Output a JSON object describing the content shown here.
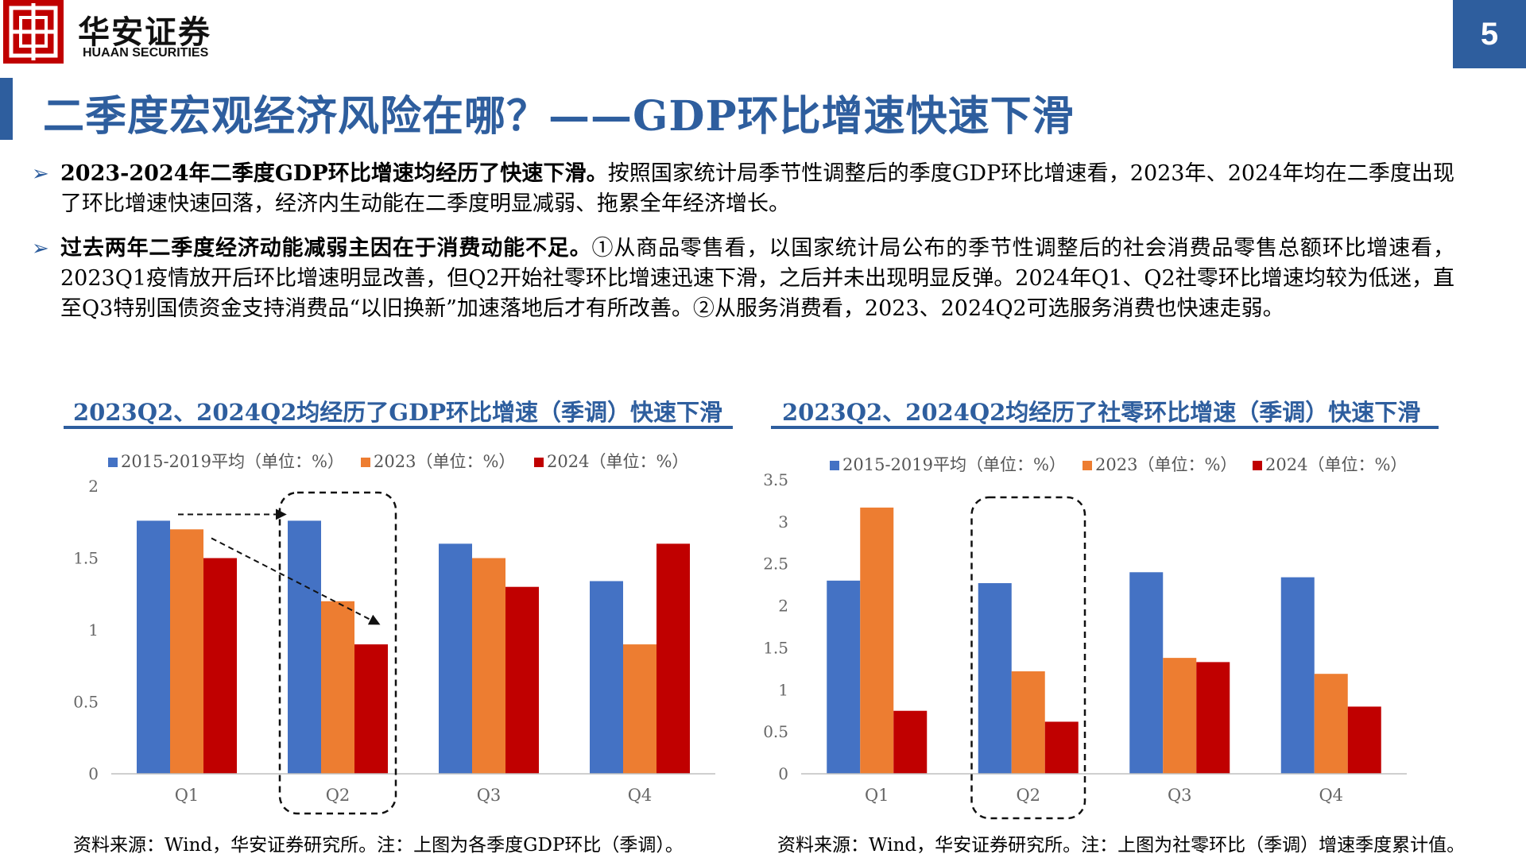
{
  "header": {
    "logo_icon": "huaan-securities-logo-icon",
    "brand_cn": "华安证券",
    "brand_en": "HUAAN SECURITIES",
    "page_number": "5",
    "accent_color": "#2e5e9e",
    "logo_color": "#c00000"
  },
  "page": {
    "title": "二季度宏观经济风险在哪？——GDP环比增速快速下滑"
  },
  "bullets": [
    {
      "icon": "arrow-bullet-icon",
      "bold": "2023-2024年二季度GDP环比增速均经历了快速下滑。",
      "text": "按照国家统计局季节性调整后的季度GDP环比增速看，2023年、2024年均在二季度出现了环比增速快速回落，经济内生动能在二季度明显减弱、拖累全年经济增长。"
    },
    {
      "icon": "arrow-bullet-icon",
      "bold": "过去两年二季度经济动能减弱主因在于消费动能不足。",
      "text": "①从商品零售看，以国家统计局公布的季节性调整后的社会消费品零售总额环比增速看，2023Q1疫情放开后环比增速明显改善，但Q2开始社零环比增速迅速下滑，之后并未出现明显反弹。2024年Q1、Q2社零环比增速均较为低迷，直至Q3特别国债资金支持消费品“以旧换新”加速落地后才有所改善。②从服务消费看，2023、2024Q2可选服务消费也快速走弱。"
    }
  ],
  "chart_data": [
    {
      "type": "bar",
      "title": "2023Q2、2024Q2均经历了GDP环比增速（季调）快速下滑",
      "categories": [
        "Q1",
        "Q2",
        "Q3",
        "Q4"
      ],
      "series": [
        {
          "name": "2015-2019平均（单位：%）",
          "color": "#4472c4",
          "values": [
            1.76,
            1.76,
            1.6,
            1.34
          ]
        },
        {
          "name": "2023（单位：%）",
          "color": "#ed7d31",
          "values": [
            1.7,
            1.2,
            1.5,
            0.9
          ]
        },
        {
          "name": "2024（单位：%）",
          "color": "#c00000",
          "values": [
            1.5,
            0.9,
            1.3,
            1.6
          ]
        }
      ],
      "ylim": [
        0,
        2
      ],
      "yticks": [
        "0",
        "0.5",
        "1",
        "1.5",
        "2"
      ],
      "legend": "top",
      "grid": false,
      "highlight": "Q2",
      "source": "资料来源：Wind，华安证券研究所。注：上图为各季度GDP环比（季调）。"
    },
    {
      "type": "bar",
      "title": "2023Q2、2024Q2均经历了社零环比增速（季调）快速下滑",
      "categories": [
        "Q1",
        "Q2",
        "Q3",
        "Q4"
      ],
      "series": [
        {
          "name": "2015-2019平均（单位：%）",
          "color": "#4472c4",
          "values": [
            2.3,
            2.27,
            2.4,
            2.34
          ]
        },
        {
          "name": "2023（单位：%）",
          "color": "#ed7d31",
          "values": [
            3.17,
            1.22,
            1.38,
            1.19
          ]
        },
        {
          "name": "2024（单位：%）",
          "color": "#c00000",
          "values": [
            0.75,
            0.62,
            1.33,
            0.8
          ]
        }
      ],
      "ylim": [
        0,
        3.5
      ],
      "yticks": [
        "0",
        "0.5",
        "1",
        "1.5",
        "2",
        "2.5",
        "3",
        "3.5"
      ],
      "legend": "top",
      "grid": false,
      "highlight": "Q2",
      "source": "资料来源：Wind，华安证券研究所。注：上图为社零环比（季调）增速季度累计值。"
    }
  ]
}
